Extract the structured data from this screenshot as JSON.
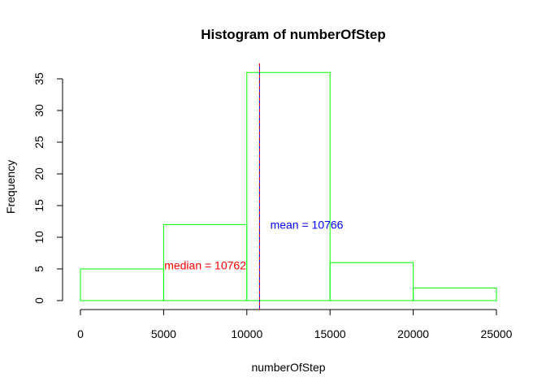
{
  "chart_data": {
    "type": "bar",
    "title": "Histogram of numberOfStep",
    "xlabel": "numberOfStep",
    "ylabel": "Frequency",
    "bins": [
      {
        "start": 0,
        "end": 5000,
        "count": 5
      },
      {
        "start": 5000,
        "end": 10000,
        "count": 12
      },
      {
        "start": 10000,
        "end": 15000,
        "count": 36
      },
      {
        "start": 15000,
        "end": 20000,
        "count": 6
      },
      {
        "start": 20000,
        "end": 25000,
        "count": 2
      }
    ],
    "xlim": [
      0,
      25000
    ],
    "ylim": [
      0,
      35
    ],
    "x_ticks": [
      "0",
      "5000",
      "10000",
      "15000",
      "20000",
      "25000"
    ],
    "y_ticks": [
      "0",
      "5",
      "10",
      "15",
      "20",
      "25",
      "30",
      "35"
    ],
    "grid": false,
    "bar_border_color": "#00ff00",
    "bar_fill": "none",
    "reference_lines": [
      {
        "name": "mean",
        "value": 10766,
        "color": "#0000ff"
      },
      {
        "name": "median",
        "value": 10762,
        "color": "#ff0000"
      }
    ],
    "annotations": [
      {
        "text": "mean = 10766",
        "color": "#0000ff",
        "x": 13600,
        "y": 12
      },
      {
        "text": "median = 10762",
        "color": "#ff0000",
        "x": 7500,
        "y": 5.6
      }
    ]
  }
}
